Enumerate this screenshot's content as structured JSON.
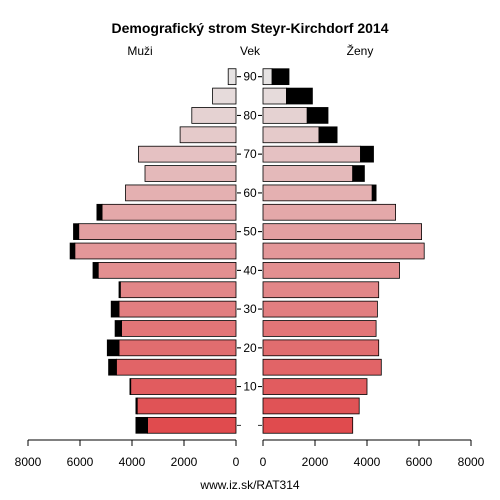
{
  "chart_data": {
    "type": "bar",
    "title": "Demografický strom Steyr-Kirchdorf 2014",
    "left_label": "Muži",
    "center_label": "Vek",
    "right_label": "Ženy",
    "source": "www.iz.sk/RAT314",
    "age_ticks": [
      "10",
      "20",
      "30",
      "40",
      "50",
      "60",
      "70",
      "80",
      "90"
    ],
    "x_ticks_left": [
      "8000",
      "6000",
      "4000",
      "2000",
      "0"
    ],
    "x_ticks_right": [
      "0",
      "2000",
      "4000",
      "6000",
      "8000"
    ],
    "xlim": [
      0,
      8000
    ],
    "age_groups": [
      "0-4",
      "5-9",
      "10-14",
      "15-19",
      "20-24",
      "25-29",
      "30-34",
      "35-39",
      "40-44",
      "45-49",
      "50-54",
      "55-59",
      "60-64",
      "65-69",
      "70-74",
      "75-79",
      "80-84",
      "85-89",
      "90+"
    ],
    "series": [
      {
        "name": "Muži",
        "values": [
          3400,
          3800,
          4050,
          4600,
          4500,
          4400,
          4500,
          4450,
          5300,
          6200,
          6050,
          5150,
          4250,
          3500,
          3750,
          2150,
          1700,
          900,
          300
        ],
        "excess": [
          450,
          50,
          30,
          300,
          450,
          250,
          300,
          50,
          200,
          180,
          200,
          200,
          0,
          0,
          0,
          0,
          0,
          0,
          0
        ]
      },
      {
        "name": "Ženy",
        "values": [
          3450,
          3700,
          4000,
          4550,
          4450,
          4350,
          4400,
          4450,
          5250,
          6200,
          6100,
          5100,
          4200,
          3450,
          3750,
          2150,
          1700,
          900,
          350
        ],
        "excess": [
          0,
          0,
          0,
          0,
          0,
          0,
          0,
          0,
          0,
          0,
          0,
          0,
          150,
          450,
          500,
          700,
          800,
          1000,
          650
        ]
      }
    ],
    "colors": {
      "male_bottom": "#e04b4e",
      "male_top": "#e6e3e3",
      "female_bottom": "#e04b4e",
      "female_top": "#e6e3e3",
      "excess": "#000000",
      "stroke": "#000000"
    }
  }
}
